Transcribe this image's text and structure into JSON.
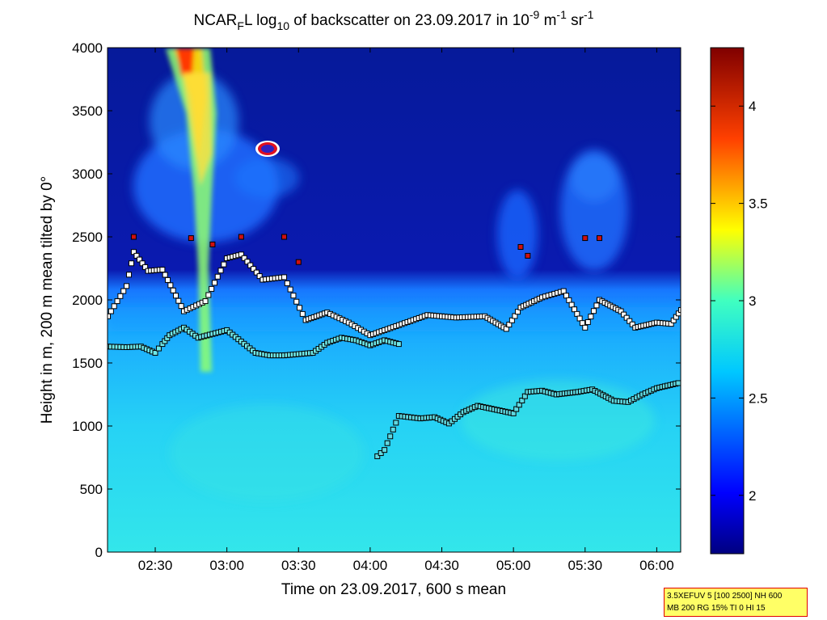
{
  "chart_data": {
    "type": "heatmap",
    "title_parts": {
      "prefix": "NCAR",
      "sub1": "F",
      "mid1": "L log",
      "sub2": "10",
      "mid2": " of backscatter on 23.09.2017 in 10",
      "sup1": "-9",
      "mid3": " m",
      "sup2": "-1",
      "mid4": " sr",
      "sup3": "-1"
    },
    "xlabel": "Time on 23.09.2017, 600 s mean",
    "ylabel": "Height in m, 200 m mean tilted by 0°",
    "xlim_hours": [
      2.167,
      6.167
    ],
    "ylim": [
      0,
      4000
    ],
    "x_ticks": [
      {
        "h": 2.5,
        "label": "02:30"
      },
      {
        "h": 3.0,
        "label": "03:00"
      },
      {
        "h": 3.5,
        "label": "03:30"
      },
      {
        "h": 4.0,
        "label": "04:00"
      },
      {
        "h": 4.5,
        "label": "04:30"
      },
      {
        "h": 5.0,
        "label": "05:00"
      },
      {
        "h": 5.5,
        "label": "05:30"
      },
      {
        "h": 6.0,
        "label": "06:00"
      }
    ],
    "y_ticks": [
      0,
      500,
      1000,
      1500,
      2000,
      2500,
      3000,
      3500,
      4000
    ],
    "colorbar": {
      "range": [
        1.7,
        4.3
      ],
      "ticks": [
        {
          "v": 2,
          "label": "2"
        },
        {
          "v": 2.5,
          "label": "2.5"
        },
        {
          "v": 3,
          "label": "3"
        },
        {
          "v": 3.5,
          "label": "3.5"
        },
        {
          "v": 4,
          "label": "4"
        }
      ]
    },
    "layer_markers": [
      {
        "name": "lower",
        "points": [
          [
            2.17,
            1630
          ],
          [
            2.3,
            1625
          ],
          [
            2.4,
            1630
          ],
          [
            2.5,
            1580
          ],
          [
            2.55,
            1650
          ],
          [
            2.6,
            1720
          ],
          [
            2.7,
            1780
          ],
          [
            2.8,
            1700
          ],
          [
            2.9,
            1730
          ],
          [
            3.0,
            1760
          ],
          [
            3.1,
            1670
          ],
          [
            3.2,
            1580
          ],
          [
            3.3,
            1560
          ],
          [
            3.4,
            1560
          ],
          [
            3.5,
            1570
          ],
          [
            3.6,
            1580
          ],
          [
            3.7,
            1660
          ],
          [
            3.8,
            1700
          ],
          [
            3.9,
            1680
          ],
          [
            4.0,
            1640
          ],
          [
            4.1,
            1680
          ],
          [
            4.2,
            1650
          ]
        ]
      },
      {
        "name": "upper",
        "points": [
          [
            2.17,
            1870
          ],
          [
            2.3,
            2110
          ],
          [
            2.35,
            2380
          ],
          [
            2.45,
            2230
          ],
          [
            2.55,
            2240
          ],
          [
            2.7,
            1910
          ],
          [
            2.85,
            1990
          ],
          [
            3.0,
            2330
          ],
          [
            3.1,
            2360
          ],
          [
            3.25,
            2160
          ],
          [
            3.4,
            2180
          ],
          [
            3.55,
            1840
          ],
          [
            3.7,
            1900
          ],
          [
            3.85,
            1820
          ],
          [
            4.0,
            1720
          ],
          [
            4.2,
            1800
          ],
          [
            4.4,
            1880
          ],
          [
            4.6,
            1860
          ],
          [
            4.8,
            1870
          ],
          [
            4.95,
            1770
          ],
          [
            5.05,
            1940
          ],
          [
            5.2,
            2020
          ],
          [
            5.35,
            2070
          ],
          [
            5.5,
            1780
          ],
          [
            5.6,
            2000
          ],
          [
            5.75,
            1910
          ],
          [
            5.85,
            1780
          ],
          [
            6.0,
            1820
          ],
          [
            6.1,
            1810
          ],
          [
            6.17,
            1920
          ]
        ]
      },
      {
        "name": "mid",
        "points": [
          [
            4.05,
            760
          ],
          [
            4.1,
            810
          ],
          [
            4.2,
            1080
          ],
          [
            4.35,
            1060
          ],
          [
            4.45,
            1070
          ],
          [
            4.55,
            1020
          ],
          [
            4.65,
            1110
          ],
          [
            4.75,
            1160
          ],
          [
            5.0,
            1100
          ],
          [
            5.1,
            1270
          ],
          [
            5.2,
            1280
          ],
          [
            5.3,
            1250
          ],
          [
            5.45,
            1270
          ],
          [
            5.55,
            1290
          ],
          [
            5.7,
            1200
          ],
          [
            5.8,
            1190
          ],
          [
            5.9,
            1250
          ],
          [
            6.0,
            1300
          ],
          [
            6.15,
            1340
          ]
        ]
      },
      {
        "name": "top",
        "points": [
          [
            2.35,
            2500
          ],
          [
            2.75,
            2490
          ],
          [
            2.9,
            2440
          ],
          [
            3.1,
            2500
          ],
          [
            3.4,
            2500
          ],
          [
            3.5,
            2300
          ],
          [
            5.05,
            2420
          ],
          [
            5.1,
            2350
          ],
          [
            5.5,
            2490
          ],
          [
            5.6,
            2490
          ]
        ]
      }
    ]
  },
  "info_box": {
    "line1": "3.5XEFUV 5 [100 2500] NH 600",
    "line2": "MB 200 RG 15% TI 0 HI 15"
  }
}
